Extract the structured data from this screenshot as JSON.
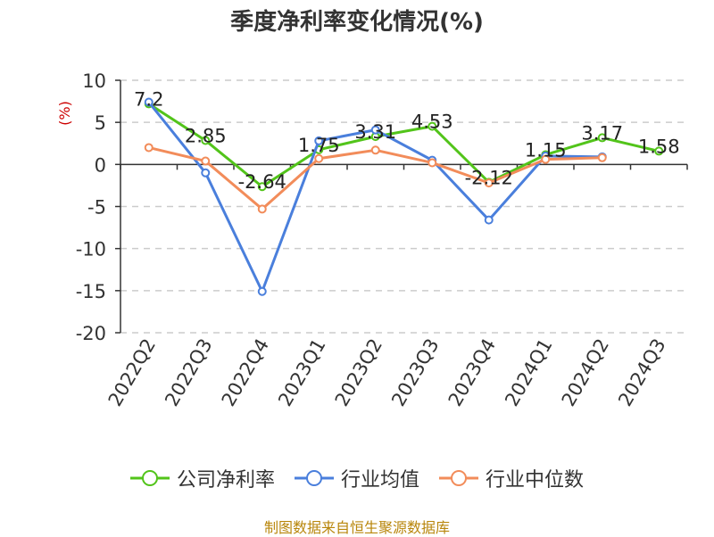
{
  "title": "季度净利率变化情况(%)",
  "source_note": "制图数据来自恒生聚源数据库",
  "chart_data": {
    "type": "line",
    "title": "季度净利率变化情况(%)",
    "ylabel": "(%)",
    "xlabel": "",
    "ylim": [
      -20,
      10
    ],
    "yticks": [
      10,
      5,
      0,
      -5,
      -10,
      -15,
      -20
    ],
    "grid": true,
    "legend_position": "bottom",
    "categories": [
      "2022Q2",
      "2022Q3",
      "2022Q4",
      "2023Q1",
      "2023Q2",
      "2023Q3",
      "2023Q4",
      "2024Q1",
      "2024Q2",
      "2024Q3"
    ],
    "series": [
      {
        "name": "公司净利率",
        "color": "#52c41a",
        "values": [
          7.2,
          2.85,
          -2.64,
          1.75,
          3.31,
          4.53,
          -2.12,
          1.15,
          3.17,
          1.58
        ],
        "labels": [
          "7.2",
          "2.85",
          "-2.64",
          "1.75",
          "3.31",
          "4.53",
          "-2.12",
          "1.15",
          "3.17",
          "1.58"
        ]
      },
      {
        "name": "行业均值",
        "color": "#4a7fdc",
        "values": [
          7.4,
          -1.0,
          -15.1,
          2.8,
          4.1,
          0.5,
          -6.6,
          1.0,
          0.9,
          null
        ]
      },
      {
        "name": "行业中位数",
        "color": "#f28c5a",
        "values": [
          2.0,
          0.4,
          -5.3,
          0.7,
          1.7,
          0.2,
          -2.2,
          0.6,
          0.8,
          null
        ]
      }
    ]
  }
}
